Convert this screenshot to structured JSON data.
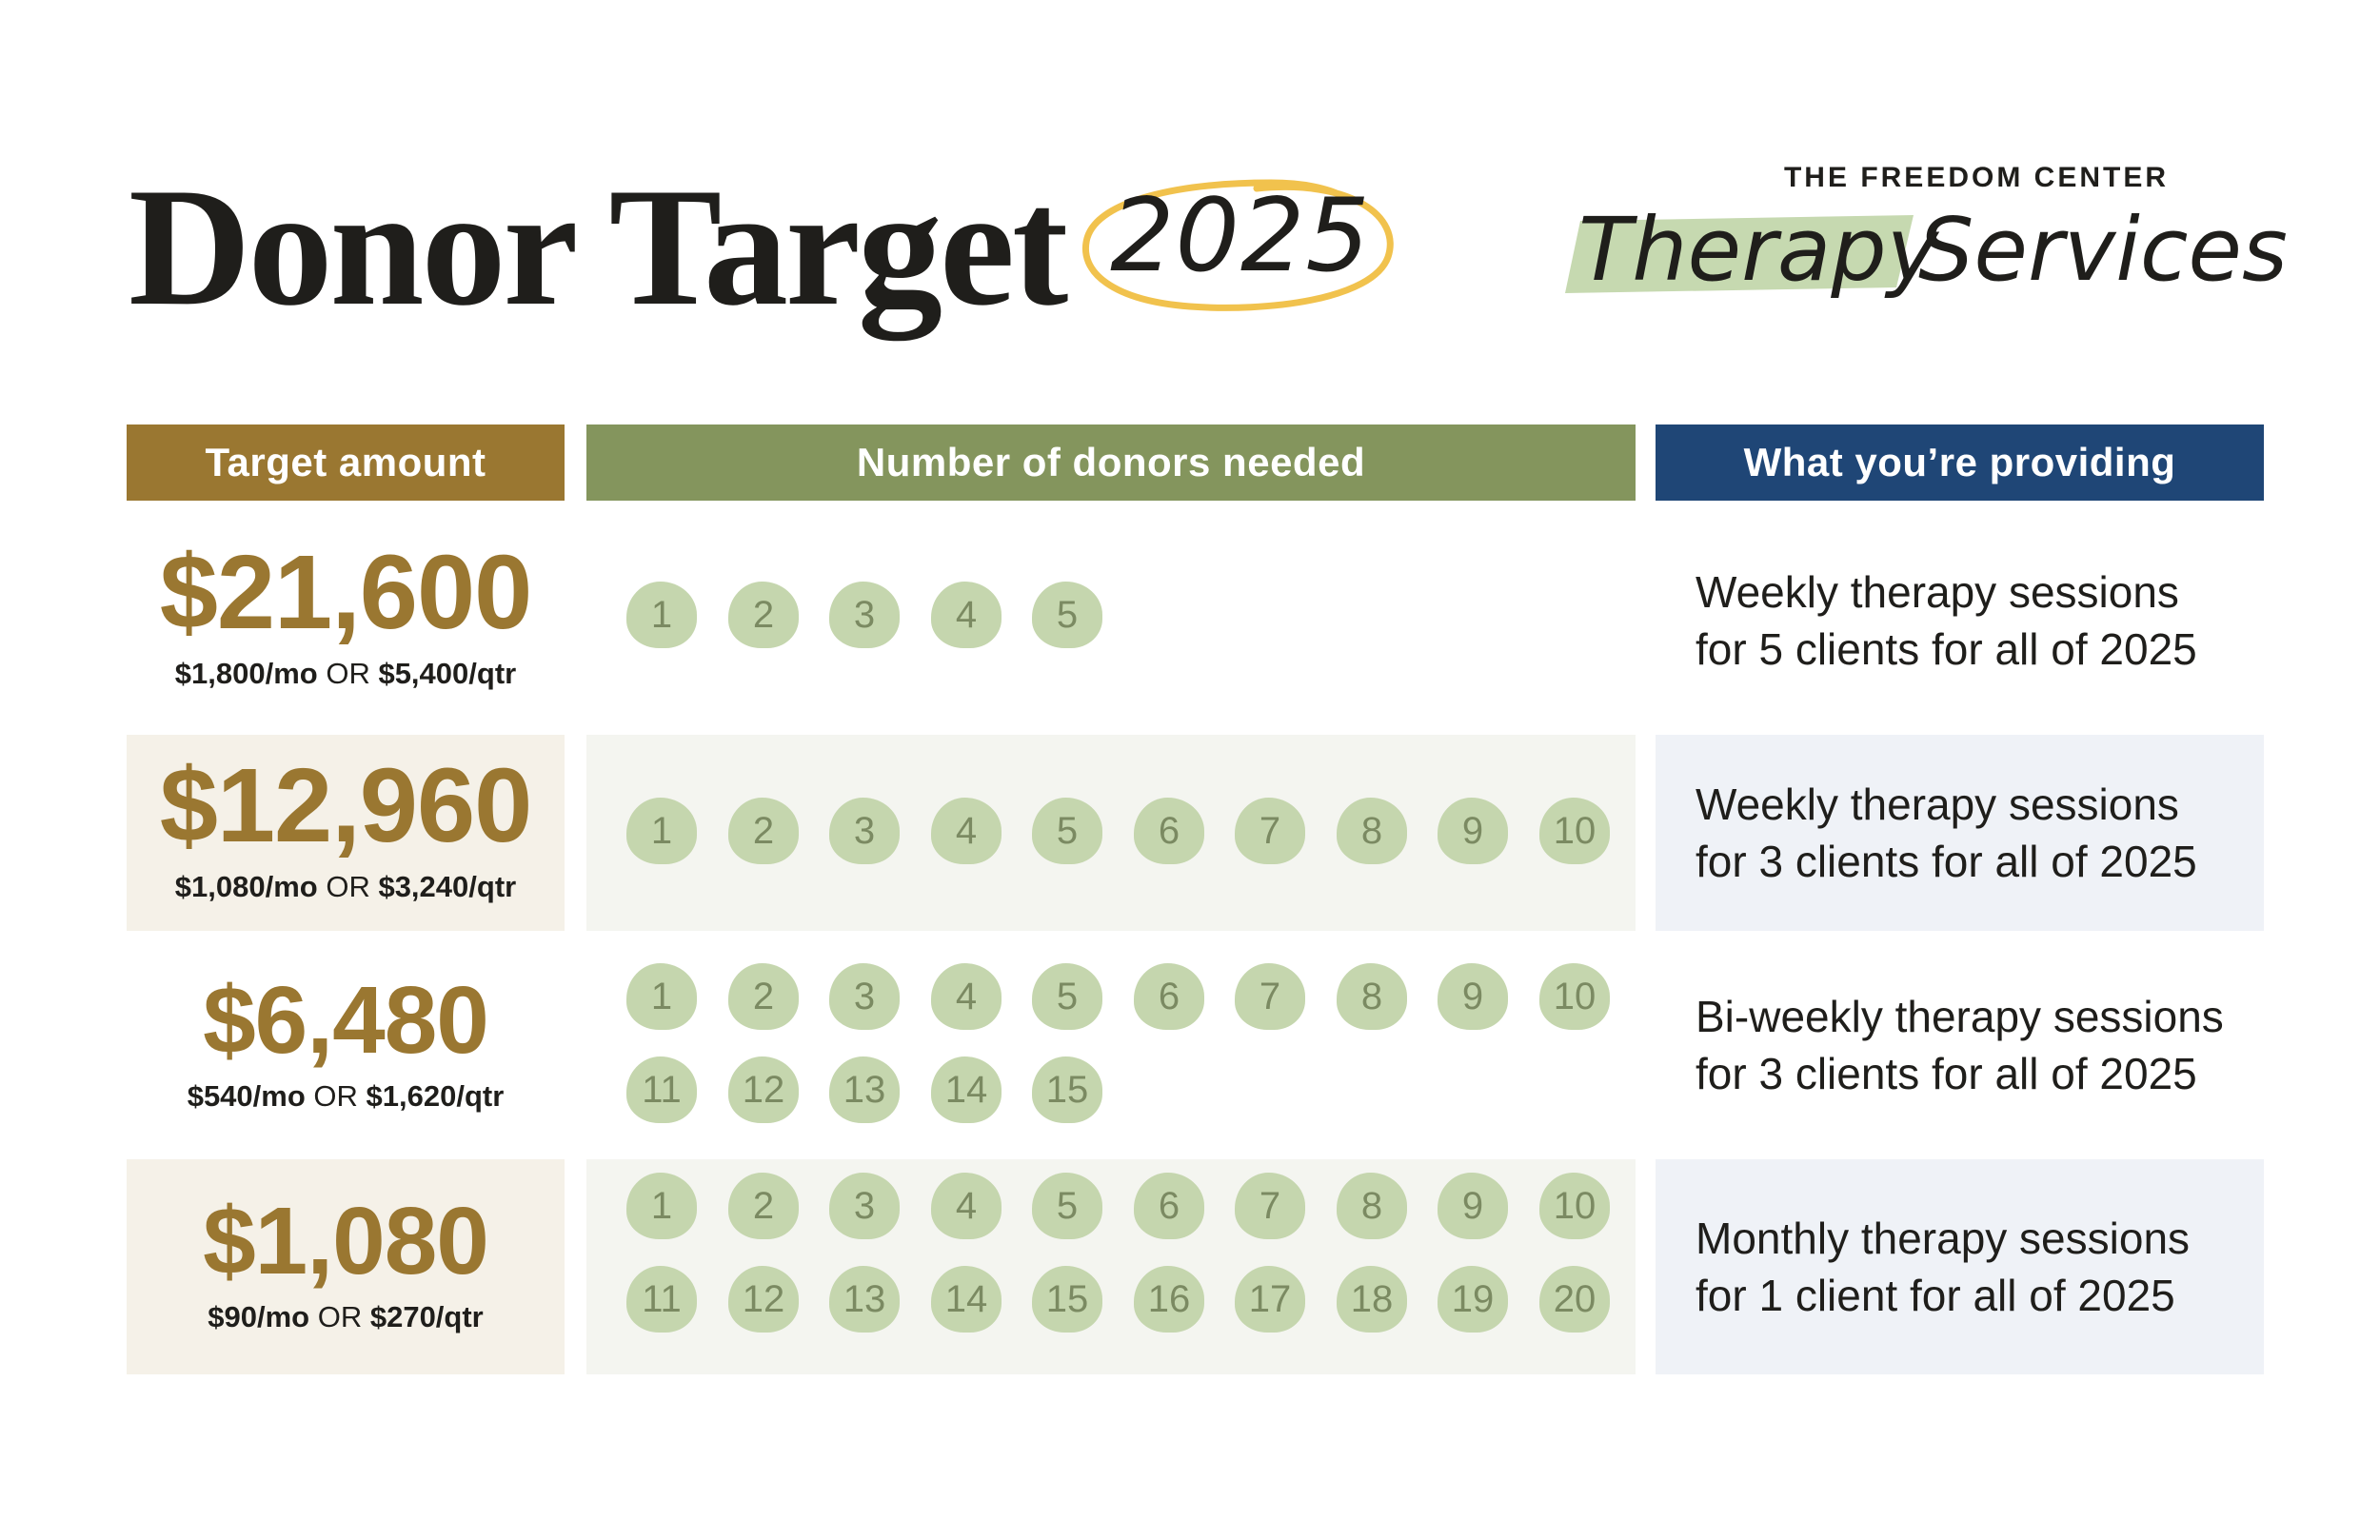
{
  "title": {
    "main": "Donor Target",
    "year": "2025"
  },
  "logo": {
    "org": "THE FREEDOM CENTER",
    "service_a": "Therapy",
    "service_b": "Services"
  },
  "headers": {
    "target": "Target amount",
    "donors": "Number of donors needed",
    "providing": "What you’re providing"
  },
  "tiers": [
    {
      "amount": "$21,600",
      "monthly": "$1,800/mo",
      "or": "OR",
      "quarterly": "$5,400/qtr",
      "donors": 5,
      "providing_line1": "Weekly therapy sessions",
      "providing_line2": "for 5 clients for all of 2025"
    },
    {
      "amount": "$12,960",
      "monthly": "$1,080/mo",
      "or": "OR",
      "quarterly": "$3,240/qtr",
      "donors": 10,
      "providing_line1": "Weekly therapy sessions",
      "providing_line2": "for 3 clients for all of 2025"
    },
    {
      "amount": "$6,480",
      "monthly": "$540/mo",
      "or": "OR",
      "quarterly": "$1,620/qtr",
      "donors": 15,
      "providing_line1": "Bi-weekly therapy sessions",
      "providing_line2": "for 3 clients for all of 2025"
    },
    {
      "amount": "$1,080",
      "monthly": "$90/mo",
      "or": "OR",
      "quarterly": "$270/qtr",
      "donors": 20,
      "providing_line1": "Monthly therapy sessions",
      "providing_line2": "for 1 client for all of 2025"
    }
  ],
  "colors": {
    "gold": "#9a7731",
    "olive": "#84955d",
    "navy": "#1f4676",
    "donor_blob": "#c5d6ae",
    "circle_accent": "#f1c24d",
    "logo_highlight": "#c6d9b0"
  }
}
